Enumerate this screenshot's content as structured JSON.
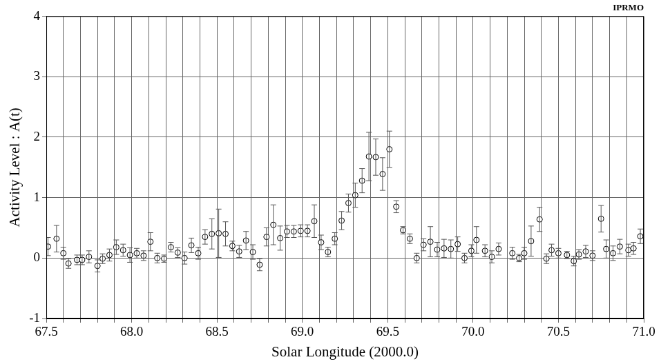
{
  "chart_data": {
    "type": "scatter",
    "title": "IPRMO",
    "x_label": "Solar Longitude (2000.0)",
    "y_label": "Activity Level : A(t)",
    "x": [
      67.51,
      67.56,
      67.6,
      67.63,
      67.68,
      67.71,
      67.75,
      67.8,
      67.83,
      67.87,
      67.91,
      67.95,
      67.99,
      68.03,
      68.07,
      68.11,
      68.15,
      68.19,
      68.23,
      68.27,
      68.31,
      68.35,
      68.39,
      68.43,
      68.47,
      68.51,
      68.55,
      68.59,
      68.63,
      68.67,
      68.71,
      68.75,
      68.79,
      68.83,
      68.87,
      68.91,
      68.95,
      68.99,
      69.03,
      69.07,
      69.11,
      69.15,
      69.19,
      69.23,
      69.27,
      69.31,
      69.35,
      69.39,
      69.43,
      69.47,
      69.51,
      69.55,
      69.59,
      69.63,
      69.67,
      69.71,
      69.75,
      69.79,
      69.83,
      69.87,
      69.91,
      69.95,
      69.99,
      70.02,
      70.07,
      70.11,
      70.15,
      70.23,
      70.27,
      70.3,
      70.34,
      70.39,
      70.43,
      70.46,
      70.5,
      70.55,
      70.59,
      70.62,
      70.66,
      70.7,
      70.75,
      70.78,
      70.82,
      70.86,
      70.91,
      70.94,
      70.98
    ],
    "values": [
      0.19,
      0.32,
      0.08,
      -0.09,
      -0.03,
      -0.03,
      0.02,
      -0.13,
      -0.01,
      0.05,
      0.18,
      0.13,
      0.05,
      0.08,
      0.04,
      0.27,
      0.0,
      -0.01,
      0.18,
      0.09,
      0.0,
      0.21,
      0.08,
      0.35,
      0.4,
      0.41,
      0.4,
      0.2,
      0.11,
      0.29,
      0.1,
      -0.11,
      0.35,
      0.55,
      0.33,
      0.44,
      0.44,
      0.45,
      0.45,
      0.61,
      0.26,
      0.1,
      0.32,
      0.62,
      0.91,
      1.04,
      1.28,
      1.68,
      1.67,
      1.39,
      1.8,
      0.85,
      0.46,
      0.32,
      0.0,
      0.22,
      0.27,
      0.14,
      0.16,
      0.15,
      0.23,
      0.0,
      0.12,
      0.3,
      0.12,
      0.02,
      0.15,
      0.08,
      0.0,
      0.08,
      0.28,
      0.64,
      -0.01,
      0.13,
      0.08,
      0.05,
      -0.05,
      0.06,
      0.11,
      0.04,
      0.65,
      0.15,
      0.08,
      0.19,
      0.13,
      0.16,
      0.36
    ],
    "errors": [
      0.15,
      0.22,
      0.1,
      0.08,
      0.08,
      0.08,
      0.1,
      0.1,
      0.08,
      0.1,
      0.12,
      0.1,
      0.12,
      0.08,
      0.08,
      0.15,
      0.08,
      0.06,
      0.08,
      0.08,
      0.1,
      0.12,
      0.1,
      0.12,
      0.25,
      0.4,
      0.2,
      0.08,
      0.1,
      0.15,
      0.12,
      0.1,
      0.15,
      0.33,
      0.2,
      0.1,
      0.1,
      0.1,
      0.1,
      0.27,
      0.12,
      0.08,
      0.1,
      0.15,
      0.15,
      0.2,
      0.2,
      0.4,
      0.3,
      0.27,
      0.3,
      0.1,
      0.06,
      0.08,
      0.08,
      0.1,
      0.25,
      0.12,
      0.15,
      0.15,
      0.12,
      0.08,
      0.1,
      0.22,
      0.1,
      0.1,
      0.1,
      0.1,
      0.06,
      0.1,
      0.25,
      0.2,
      0.08,
      0.1,
      0.08,
      0.06,
      0.08,
      0.08,
      0.1,
      0.08,
      0.22,
      0.15,
      0.12,
      0.12,
      0.1,
      0.1,
      0.12
    ],
    "color": "#000000",
    "marker": "open_circle",
    "xlim": [
      67.5,
      71.0
    ],
    "ylim": [
      -1,
      4
    ],
    "xticks": [
      67.5,
      {
        "value": 68,
        "label": "68.0"
      },
      68.5,
      {
        "value": 69,
        "label": "69.0"
      },
      69.5,
      {
        "value": 70,
        "label": "70.0"
      },
      70.5,
      {
        "value": 71,
        "label": "71.0"
      }
    ],
    "yticks": [
      -1,
      0,
      1,
      2,
      3,
      4
    ],
    "grid": true
  }
}
